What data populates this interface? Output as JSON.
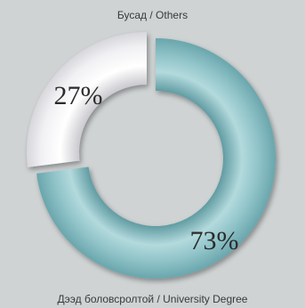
{
  "chart_data": {
    "type": "pie",
    "variant": "donut",
    "slices": [
      {
        "label": "Бусад / Others",
        "value": 27,
        "display": "27%",
        "color": "#f4f4f6"
      },
      {
        "label": "Дээд боловсролтой / University Degree",
        "value": 73,
        "display": "73%",
        "color": "#8fc2c7"
      }
    ]
  },
  "colors": {
    "background": "#cfd3d3"
  }
}
